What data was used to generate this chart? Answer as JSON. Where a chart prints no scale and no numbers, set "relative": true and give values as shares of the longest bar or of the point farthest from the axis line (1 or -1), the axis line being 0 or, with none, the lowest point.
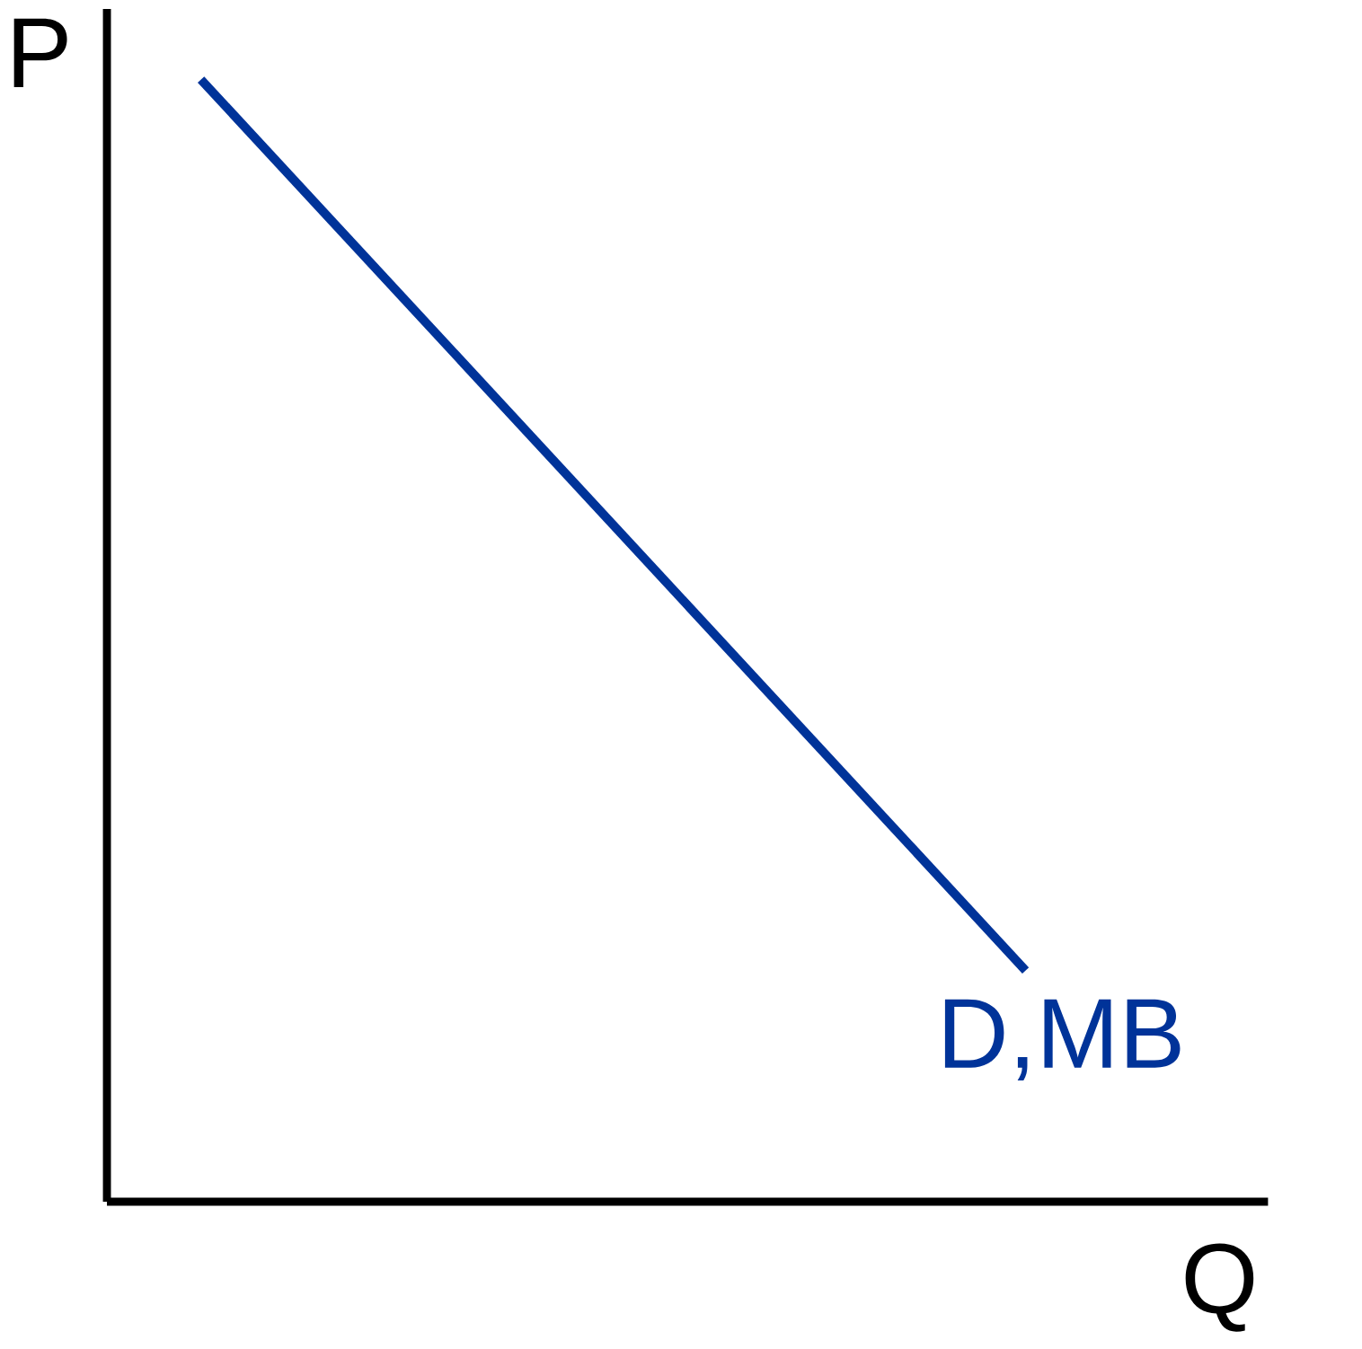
{
  "chart_data": {
    "type": "line",
    "xlabel": "Q",
    "ylabel": "P",
    "relative": true,
    "categories": [
      null,
      null
    ],
    "series": [
      {
        "name": "D,MB",
        "color": "#003399",
        "values": [
          1,
          0.206
        ]
      }
    ]
  }
}
